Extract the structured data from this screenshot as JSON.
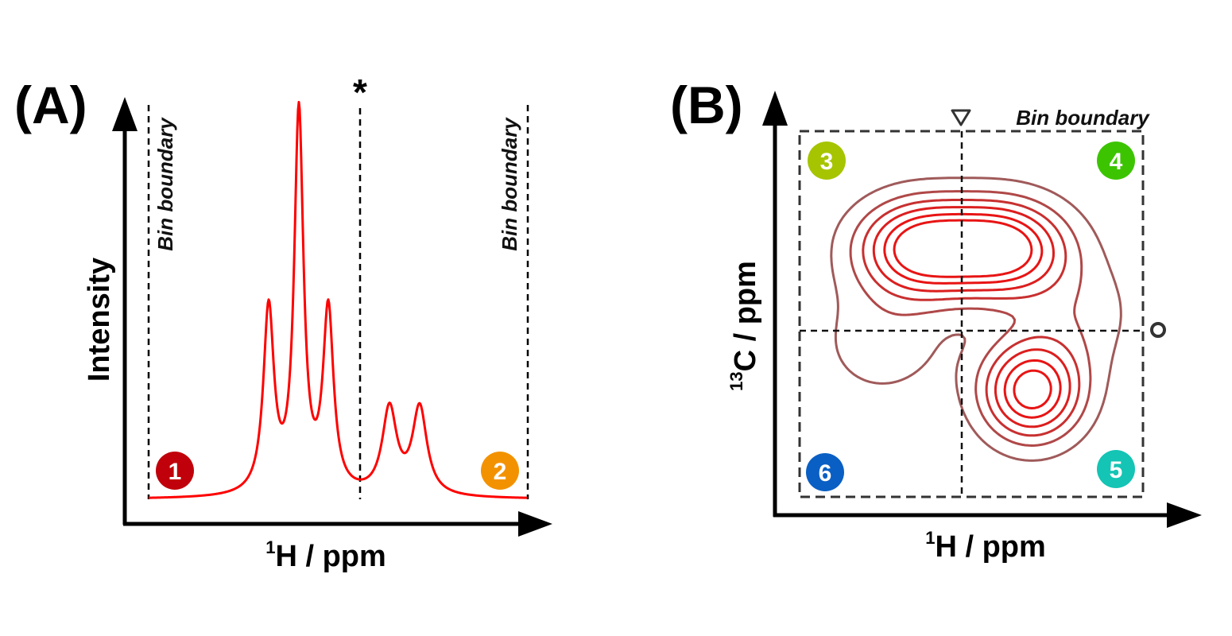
{
  "panel_a": {
    "label": "(A)",
    "y_axis_label": "Intensity",
    "x_axis_label_sup": "1",
    "x_axis_label_main": "H / ppm",
    "bin_left": "Bin boundary",
    "bin_right": "Bin boundary",
    "split_marker": "*",
    "badges": [
      {
        "text": "1",
        "color": "#c0000a"
      },
      {
        "text": "2",
        "color": "#f39200"
      }
    ],
    "spectrum_color": "#ff0000"
  },
  "panel_b": {
    "label": "(B)",
    "y_axis_label_sup": "13",
    "y_axis_label_main": "C / ppm",
    "x_axis_label_sup": "1",
    "x_axis_label_main": "H / ppm",
    "bin_label": "Bin boundary",
    "triangle_marker": "downward-triangle",
    "circle_marker": "open-circle",
    "badges": [
      {
        "text": "3",
        "color": "#a6c400"
      },
      {
        "text": "4",
        "color": "#3cc400"
      },
      {
        "text": "5",
        "color": "#14c4b4"
      },
      {
        "text": "6",
        "color": "#0a5fc4"
      }
    ],
    "contour_colors": [
      "#a05a5a",
      "#b04848",
      "#c83030",
      "#dc1e1e",
      "#e81414"
    ]
  }
}
